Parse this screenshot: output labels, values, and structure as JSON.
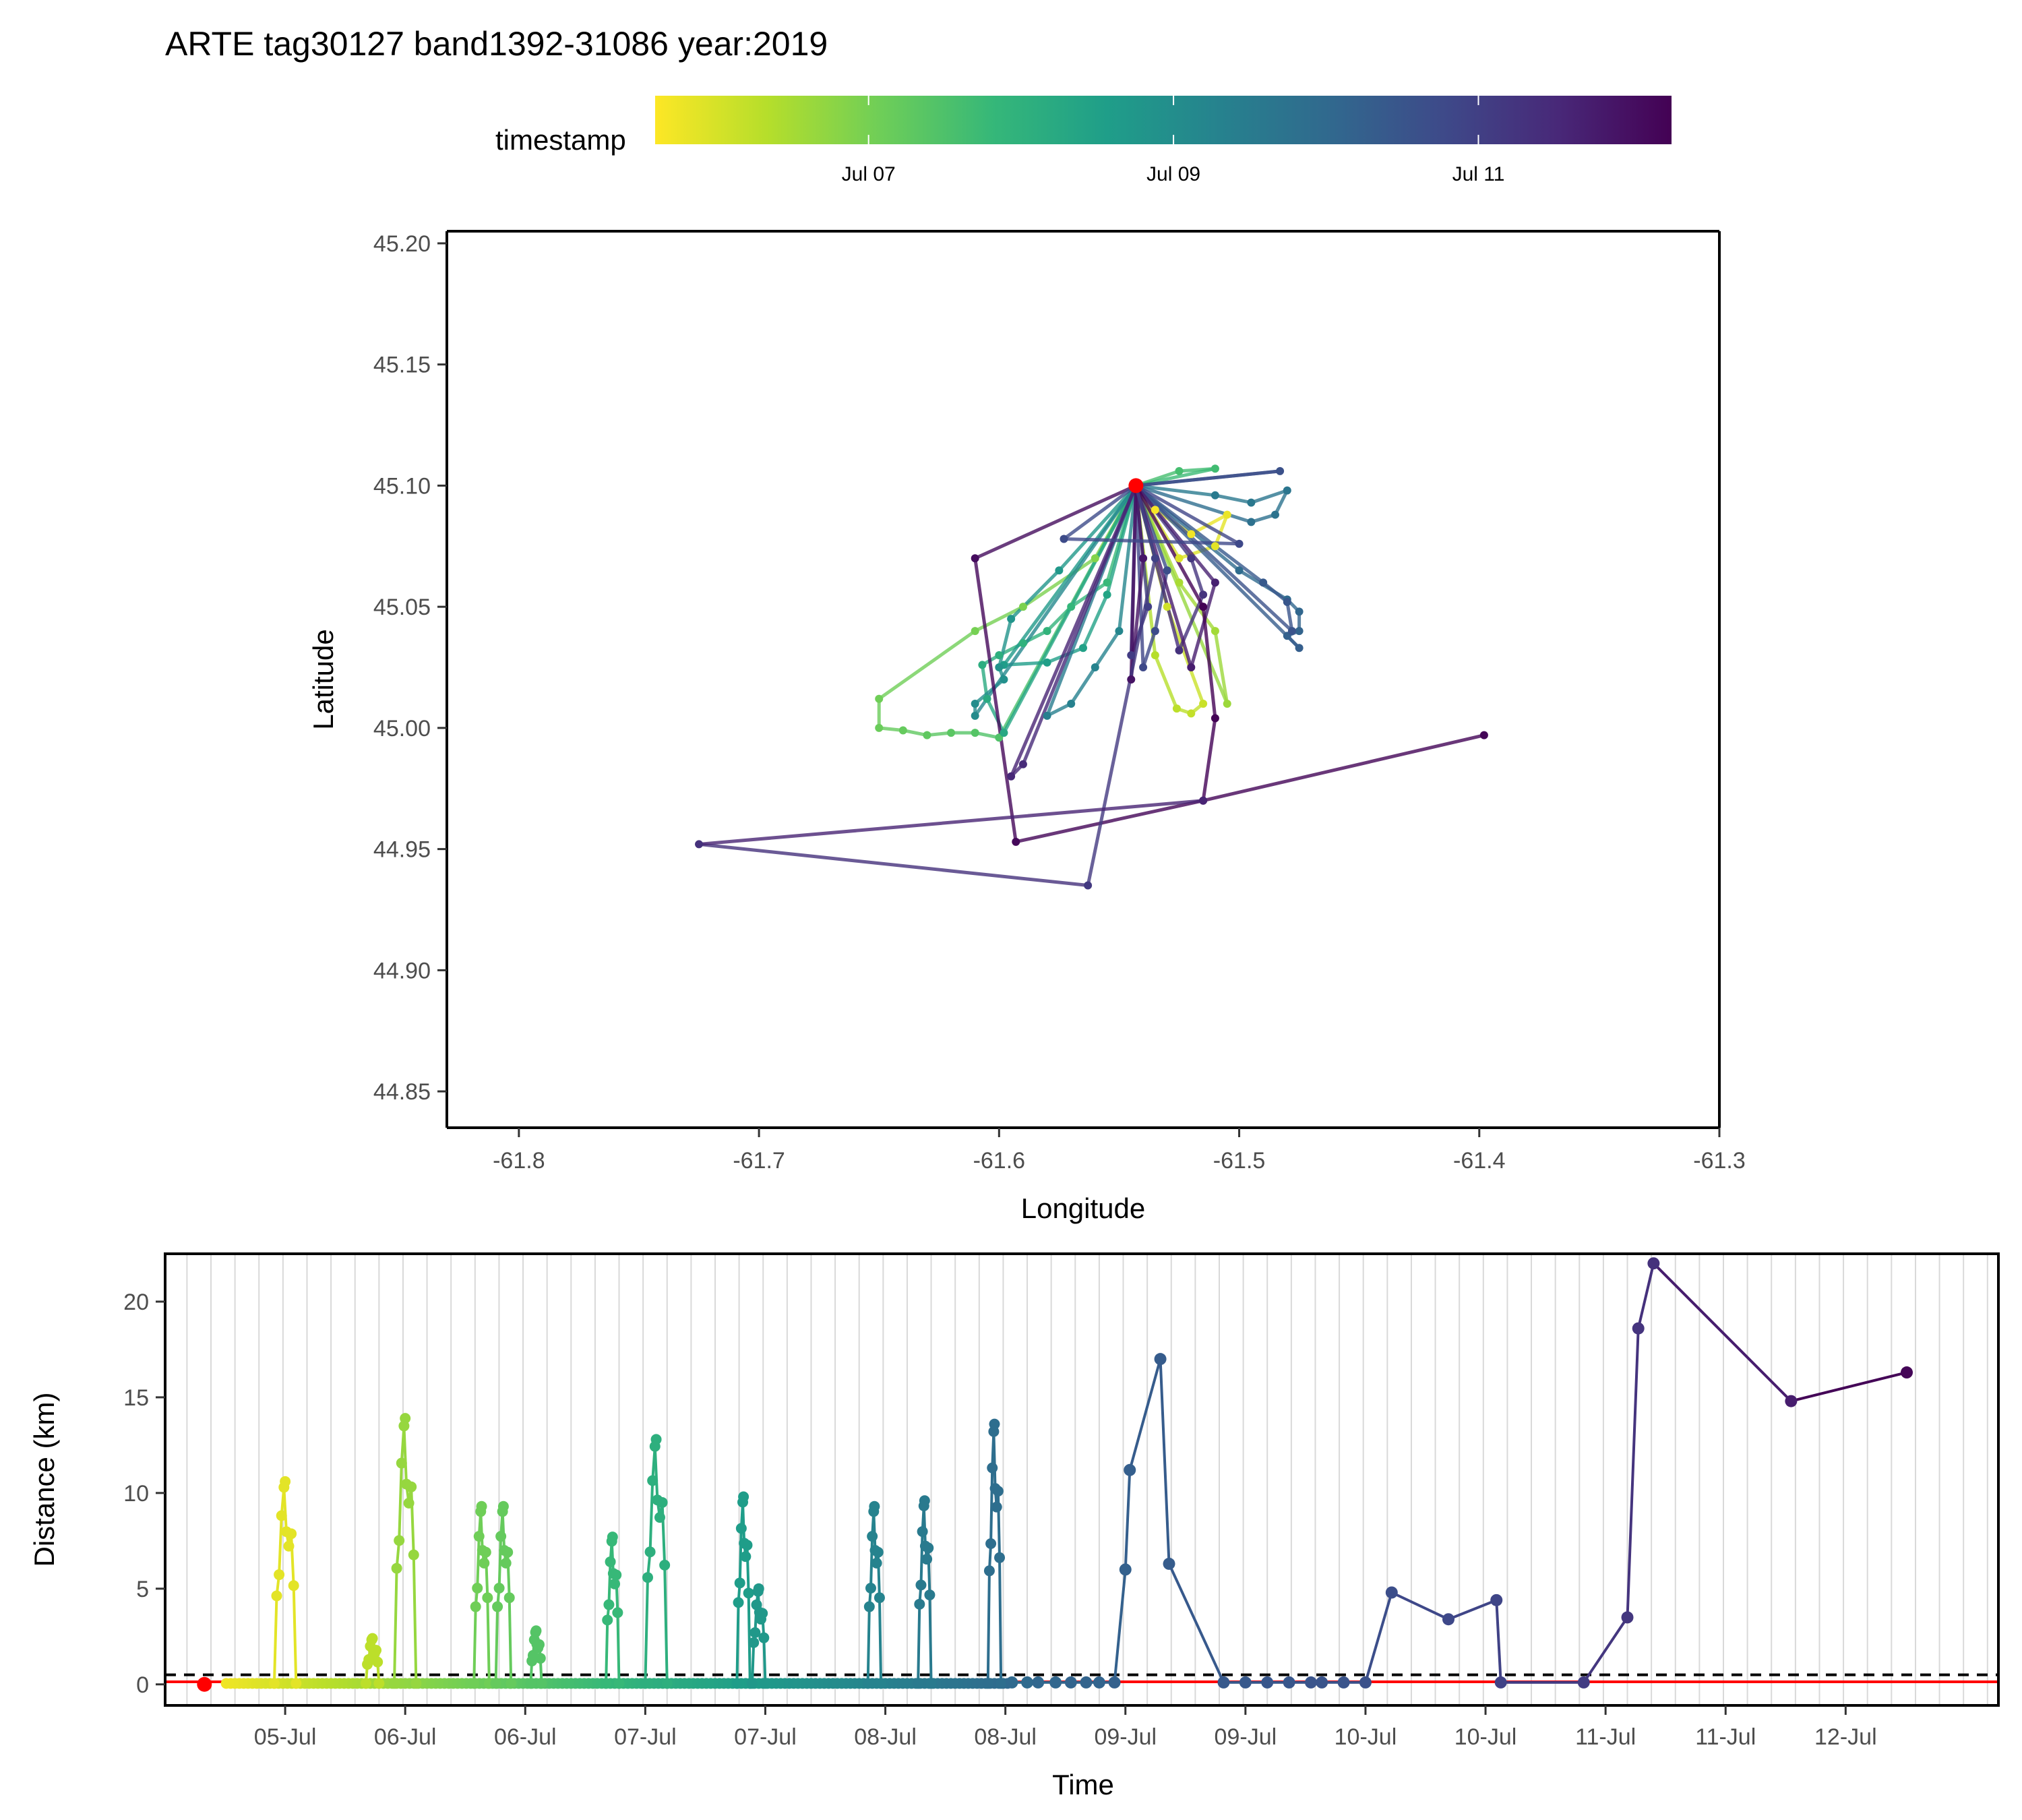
{
  "title": "ARTE tag30127 band1392-31086 year:2019",
  "colors": {
    "viridis": [
      "#fde725",
      "#b5de2b",
      "#6ece58",
      "#35b779",
      "#1f9e89",
      "#26828e",
      "#31688e",
      "#3e4989",
      "#482878",
      "#440154"
    ],
    "highlight": "#ff0000",
    "reference_line": "#ff0000",
    "threshold_line": "#000000",
    "grid": "#d9d9d9"
  },
  "legend": {
    "title": "timestamp",
    "type": "colorbar",
    "labels": [
      "Jul 07",
      "Jul 09",
      "Jul 11"
    ],
    "label_positions": [
      0.21,
      0.51,
      0.81
    ]
  },
  "chart_data": [
    {
      "type": "line",
      "name": "track-map",
      "xlabel": "Longitude",
      "ylabel": "Latitude",
      "xlim": [
        -61.83,
        -61.3
      ],
      "ylim": [
        44.835,
        45.205
      ],
      "xticks": [
        "-61.8",
        "-61.7",
        "-61.6",
        "-61.5",
        "-61.4",
        "-61.3"
      ],
      "xtick_values": [
        -61.8,
        -61.7,
        -61.6,
        -61.5,
        -61.4,
        -61.3
      ],
      "yticks": [
        "44.85",
        "44.90",
        "44.95",
        "45.00",
        "45.05",
        "45.10",
        "45.15",
        "45.20"
      ],
      "ytick_values": [
        44.85,
        44.9,
        44.95,
        45.0,
        45.05,
        45.1,
        45.15,
        45.2
      ],
      "grid": false,
      "legend": "top",
      "start_point": [
        -61.543,
        45.1
      ],
      "points": [
        [
          -61.543,
          45.1,
          0.0
        ],
        [
          -61.535,
          45.09,
          0.01
        ],
        [
          -61.52,
          45.08,
          0.02
        ],
        [
          -61.505,
          45.088,
          0.03
        ],
        [
          -61.51,
          45.075,
          0.04
        ],
        [
          -61.525,
          45.07,
          0.05
        ],
        [
          -61.543,
          45.1,
          0.06
        ],
        [
          -61.53,
          45.05,
          0.07
        ],
        [
          -61.515,
          45.01,
          0.08
        ],
        [
          -61.52,
          45.006,
          0.09
        ],
        [
          -61.526,
          45.008,
          0.1
        ],
        [
          -61.535,
          45.03,
          0.11
        ],
        [
          -61.543,
          45.1,
          0.12
        ],
        [
          -61.525,
          45.06,
          0.13
        ],
        [
          -61.51,
          45.04,
          0.14
        ],
        [
          -61.505,
          45.01,
          0.15
        ],
        [
          -61.543,
          45.1,
          0.16
        ],
        [
          -61.56,
          45.07,
          0.19
        ],
        [
          -61.59,
          45.05,
          0.2
        ],
        [
          -61.61,
          45.04,
          0.21
        ],
        [
          -61.65,
          45.012,
          0.22
        ],
        [
          -61.65,
          45.0,
          0.23
        ],
        [
          -61.64,
          44.999,
          0.24
        ],
        [
          -61.63,
          44.997,
          0.25
        ],
        [
          -61.62,
          44.998,
          0.26
        ],
        [
          -61.61,
          44.998,
          0.27
        ],
        [
          -61.6,
          44.996,
          0.28
        ],
        [
          -61.543,
          45.1,
          0.29
        ],
        [
          -61.525,
          45.106,
          0.3
        ],
        [
          -61.51,
          45.107,
          0.31
        ],
        [
          -61.543,
          45.1,
          0.32
        ],
        [
          -61.555,
          45.06,
          0.33
        ],
        [
          -61.57,
          45.05,
          0.34
        ],
        [
          -61.58,
          45.04,
          0.35
        ],
        [
          -61.59,
          45.035,
          0.36
        ],
        [
          -61.6,
          45.03,
          0.37
        ],
        [
          -61.607,
          45.026,
          0.38
        ],
        [
          -61.605,
          45.012,
          0.39
        ],
        [
          -61.598,
          44.998,
          0.4
        ],
        [
          -61.543,
          45.1,
          0.41
        ],
        [
          -61.555,
          45.055,
          0.42
        ],
        [
          -61.565,
          45.033,
          0.43
        ],
        [
          -61.58,
          45.027,
          0.44
        ],
        [
          -61.598,
          45.026,
          0.45
        ],
        [
          -61.543,
          45.1,
          0.46
        ],
        [
          -61.575,
          45.065,
          0.47
        ],
        [
          -61.595,
          45.045,
          0.48
        ],
        [
          -61.6,
          45.025,
          0.49
        ],
        [
          -61.598,
          45.02,
          0.5
        ],
        [
          -61.61,
          45.01,
          0.51
        ],
        [
          -61.61,
          45.005,
          0.52
        ],
        [
          -61.543,
          45.1,
          0.53
        ],
        [
          -61.55,
          45.04,
          0.54
        ],
        [
          -61.56,
          45.025,
          0.55
        ],
        [
          -61.57,
          45.01,
          0.56
        ],
        [
          -61.58,
          45.005,
          0.57
        ],
        [
          -61.543,
          45.1,
          0.58
        ],
        [
          -61.51,
          45.096,
          0.59
        ],
        [
          -61.495,
          45.093,
          0.6
        ],
        [
          -61.48,
          45.098,
          0.61
        ],
        [
          -61.485,
          45.088,
          0.62
        ],
        [
          -61.495,
          45.085,
          0.63
        ],
        [
          -61.543,
          45.1,
          0.64
        ],
        [
          -61.5,
          45.065,
          0.65
        ],
        [
          -61.48,
          45.053,
          0.66
        ],
        [
          -61.475,
          45.048,
          0.67
        ],
        [
          -61.475,
          45.04,
          0.68
        ],
        [
          -61.48,
          45.038,
          0.69
        ],
        [
          -61.475,
          45.033,
          0.7
        ],
        [
          -61.543,
          45.1,
          0.71
        ],
        [
          -61.49,
          45.06,
          0.72
        ],
        [
          -61.48,
          45.052,
          0.73
        ],
        [
          -61.478,
          45.04,
          0.74
        ],
        [
          -61.543,
          45.1,
          0.75
        ],
        [
          -61.53,
          45.065,
          0.76
        ],
        [
          -61.535,
          45.04,
          0.77
        ],
        [
          -61.54,
          45.025,
          0.78
        ],
        [
          -61.543,
          45.1,
          0.79
        ],
        [
          -61.54,
          45.07,
          0.8
        ],
        [
          -61.538,
          45.05,
          0.81
        ],
        [
          -61.545,
          45.03,
          0.82
        ],
        [
          -61.543,
          45.1,
          0.83
        ],
        [
          -61.52,
          45.07,
          0.84
        ],
        [
          -61.515,
          45.055,
          0.85
        ],
        [
          -61.525,
          45.032,
          0.86
        ],
        [
          -61.543,
          45.1,
          0.87
        ],
        [
          -61.59,
          44.985,
          0.88
        ],
        [
          -61.595,
          44.98,
          0.89
        ],
        [
          -61.543,
          45.1,
          0.9
        ],
        [
          -61.51,
          45.06,
          0.91
        ],
        [
          -61.52,
          45.025,
          0.92
        ],
        [
          -61.543,
          45.1,
          0.93
        ],
        [
          -61.54,
          45.07,
          0.94
        ],
        [
          -61.545,
          45.02,
          0.95
        ],
        [
          -61.543,
          45.1,
          0.96
        ],
        [
          -61.61,
          45.07,
          0.97
        ],
        [
          -61.593,
          44.953,
          0.98
        ],
        [
          -61.515,
          44.97,
          0.99
        ],
        [
          -61.51,
          45.004,
          0.995
        ],
        [
          -61.515,
          45.05,
          0.996
        ],
        [
          -61.543,
          45.1,
          0.997
        ]
      ],
      "late_points": [
        [
          -61.543,
          45.1,
          0.74
        ],
        [
          -61.483,
          45.106,
          0.75
        ],
        [
          -61.543,
          45.1,
          0.76
        ],
        [
          -61.573,
          45.078,
          0.77
        ],
        [
          -61.5,
          45.076,
          0.78
        ],
        [
          -61.543,
          45.1,
          0.79
        ],
        [
          -61.535,
          45.07,
          0.8
        ],
        [
          -61.563,
          44.935,
          0.83
        ],
        [
          -61.725,
          44.952,
          0.86
        ],
        [
          -61.515,
          44.97,
          0.9
        ],
        [
          -61.398,
          44.997,
          0.99
        ]
      ]
    },
    {
      "type": "line",
      "name": "distance-time",
      "xlabel": "Time",
      "ylabel": "Distance (km)",
      "xlim": [
        0.0,
        8.4
      ],
      "ylim": [
        -1.1,
        22.5
      ],
      "yticks": [
        "0",
        "5",
        "10",
        "15",
        "20"
      ],
      "ytick_values": [
        0,
        5,
        10,
        15,
        20
      ],
      "xticks": [
        "05-Jul",
        "06-Jul",
        "06-Jul",
        "07-Jul",
        "07-Jul",
        "08-Jul",
        "08-Jul",
        "09-Jul",
        "09-Jul",
        "10-Jul",
        "10-Jul",
        "11-Jul",
        "11-Jul",
        "12-Jul"
      ],
      "xtick_values": [
        0.55,
        1.1,
        1.65,
        2.2,
        2.75,
        3.3,
        3.85,
        4.4,
        4.95,
        5.5,
        6.05,
        6.6,
        7.15,
        7.7
      ],
      "threshold": 0.5,
      "grid": true,
      "start_point": [
        0.18,
        0.0
      ],
      "spikes": [
        {
          "t": 0.55,
          "peak": 10.6,
          "width": 0.1,
          "c": 0.04
        },
        {
          "t": 0.95,
          "peak": 2.4,
          "width": 0.06,
          "c": 0.1
        },
        {
          "t": 1.1,
          "peak": 13.9,
          "width": 0.1,
          "c": 0.16
        },
        {
          "t": 1.45,
          "peak": 9.3,
          "width": 0.07,
          "c": 0.22
        },
        {
          "t": 1.55,
          "peak": 9.3,
          "width": 0.07,
          "c": 0.24
        },
        {
          "t": 1.7,
          "peak": 2.8,
          "width": 0.05,
          "c": 0.27
        },
        {
          "t": 2.05,
          "peak": 7.7,
          "width": 0.06,
          "c": 0.33
        },
        {
          "t": 2.25,
          "peak": 12.8,
          "width": 0.1,
          "c": 0.37
        },
        {
          "t": 2.65,
          "peak": 9.8,
          "width": 0.06,
          "c": 0.45
        },
        {
          "t": 2.72,
          "peak": 5.0,
          "width": 0.06,
          "c": 0.47
        },
        {
          "t": 3.25,
          "peak": 9.3,
          "width": 0.06,
          "c": 0.55
        },
        {
          "t": 3.48,
          "peak": 9.6,
          "width": 0.06,
          "c": 0.59
        },
        {
          "t": 3.8,
          "peak": 13.6,
          "width": 0.06,
          "c": 0.64
        }
      ],
      "late_points": [
        [
          3.88,
          0.1,
          0.66
        ],
        [
          3.95,
          0.1,
          0.66
        ],
        [
          4.0,
          0.1,
          0.67
        ],
        [
          4.08,
          0.1,
          0.67
        ],
        [
          4.15,
          0.1,
          0.68
        ],
        [
          4.22,
          0.1,
          0.68
        ],
        [
          4.28,
          0.1,
          0.68
        ],
        [
          4.35,
          0.1,
          0.69
        ],
        [
          4.4,
          6.0,
          0.69
        ],
        [
          4.42,
          11.2,
          0.7
        ],
        [
          4.56,
          17.0,
          0.71
        ],
        [
          4.6,
          6.3,
          0.71
        ],
        [
          4.85,
          0.1,
          0.72
        ],
        [
          4.95,
          0.1,
          0.72
        ],
        [
          5.05,
          0.1,
          0.73
        ],
        [
          5.15,
          0.1,
          0.73
        ],
        [
          5.25,
          0.1,
          0.74
        ],
        [
          5.3,
          0.1,
          0.74
        ],
        [
          5.4,
          0.1,
          0.74
        ],
        [
          5.5,
          0.1,
          0.75
        ],
        [
          5.62,
          4.8,
          0.76
        ],
        [
          5.88,
          3.4,
          0.78
        ],
        [
          6.1,
          4.4,
          0.79
        ],
        [
          6.12,
          0.1,
          0.8
        ],
        [
          6.5,
          0.1,
          0.82
        ],
        [
          6.7,
          3.5,
          0.84
        ],
        [
          6.75,
          18.6,
          0.85
        ],
        [
          6.82,
          22.0,
          0.86
        ],
        [
          7.45,
          14.8,
          0.92
        ],
        [
          7.98,
          16.3,
          0.99
        ]
      ]
    }
  ]
}
